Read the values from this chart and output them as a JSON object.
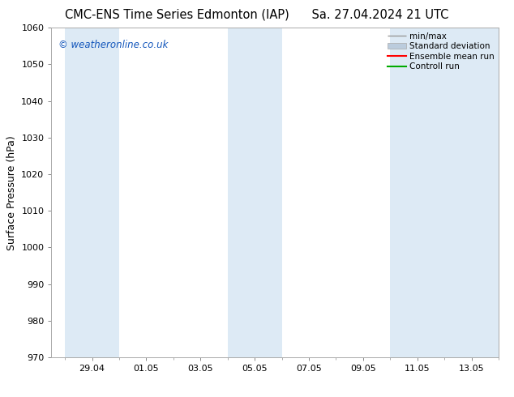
{
  "title_left": "CMC-ENS Time Series Edmonton (IAP)",
  "title_right": "Sa. 27.04.2024 21 UTC",
  "ylabel": "Surface Pressure (hPa)",
  "ylim": [
    970,
    1060
  ],
  "yticks": [
    970,
    980,
    990,
    1000,
    1010,
    1020,
    1030,
    1040,
    1050,
    1060
  ],
  "xtick_labels": [
    "29.04",
    "01.05",
    "03.05",
    "05.05",
    "07.05",
    "09.05",
    "11.05",
    "13.05"
  ],
  "xtick_positions": [
    2,
    4,
    6,
    8,
    10,
    12,
    14,
    16
  ],
  "xlim": [
    0.5,
    17
  ],
  "background_color": "#ffffff",
  "plot_bg_color": "#ffffff",
  "shaded_bands": [
    {
      "x_start": 1,
      "x_end": 3
    },
    {
      "x_start": 7,
      "x_end": 9
    },
    {
      "x_start": 13,
      "x_end": 17
    }
  ],
  "shade_color": "#ddeaf5",
  "watermark_text": "© weatheronline.co.uk",
  "watermark_color": "#1155bb",
  "legend_entries": [
    "min/max",
    "Standard deviation",
    "Ensemble mean run",
    "Controll run"
  ],
  "legend_line_colors": [
    "#999999",
    "#bbccdd",
    "#ff0000",
    "#00aa00"
  ],
  "grid_color": "#dddddd",
  "spine_color": "#aaaaaa",
  "title_fontsize": 10.5,
  "label_fontsize": 9,
  "tick_fontsize": 8,
  "watermark_fontsize": 8.5,
  "legend_fontsize": 7.5
}
